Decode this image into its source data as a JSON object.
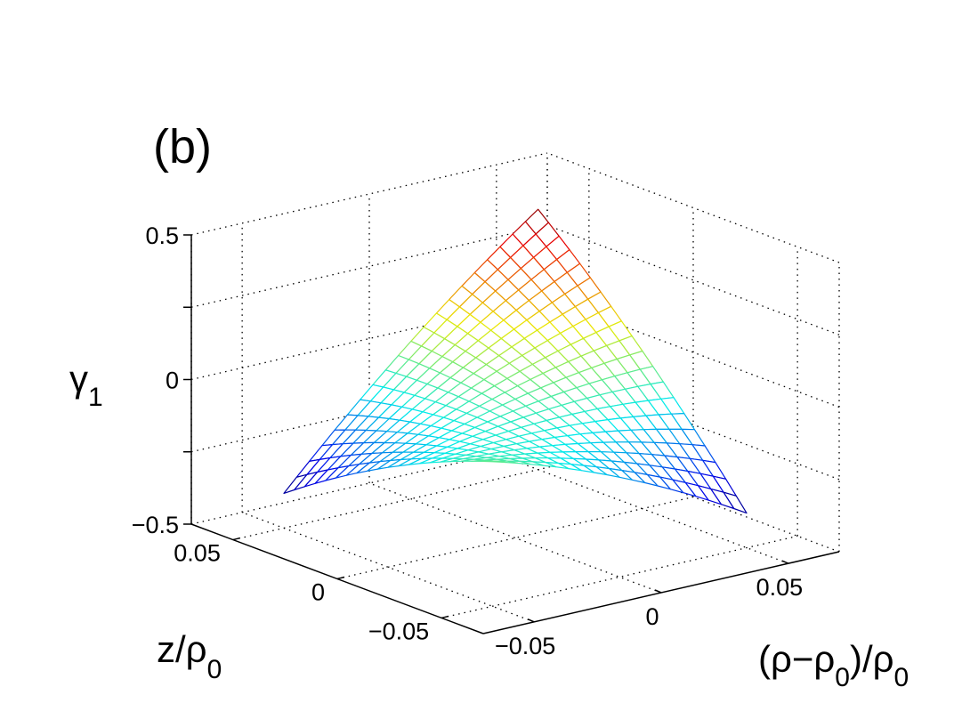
{
  "chart_data": {
    "type": "surface-mesh",
    "panel_label": "(b)",
    "axes": {
      "x": {
        "label_parts": [
          "(ρ−ρ",
          "0",
          ")/ρ",
          "0"
        ],
        "range": [
          -0.07,
          0.07
        ],
        "ticks": [
          -0.05,
          0,
          0.05
        ],
        "tick_labels": [
          "−0.05",
          "0",
          "0.05"
        ]
      },
      "y": {
        "label_parts": [
          "z/ρ",
          "0"
        ],
        "range": [
          -0.07,
          0.07
        ],
        "ticks": [
          -0.05,
          0,
          0.05
        ],
        "tick_labels": [
          "−0.05",
          "0",
          "0.05"
        ]
      },
      "z": {
        "label_parts": [
          "γ",
          "1"
        ],
        "range": [
          -0.5,
          0.5
        ],
        "ticks": [
          -0.5,
          0,
          0.5
        ],
        "tick_labels": [
          "−0.5",
          "0",
          "0.5"
        ]
      }
    },
    "grid": true,
    "colormap": "jet",
    "surface": {
      "x_range": [
        -0.05,
        0.05
      ],
      "y_range": [
        -0.05,
        0.05
      ],
      "samples": 21,
      "function": "saddle",
      "corner_values": {
        "x_max_y_max": 0.4,
        "x_min_y_min": 0.0,
        "x_min_y_max": -0.38,
        "x_max_y_min": -0.38
      },
      "center_value": -0.02,
      "color_range": [
        -0.38,
        0.4
      ]
    }
  }
}
